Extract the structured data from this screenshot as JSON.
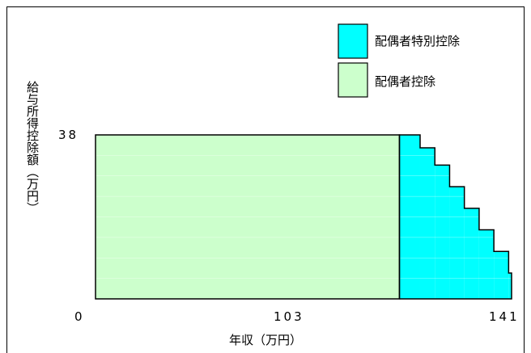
{
  "chart_data": {
    "type": "area",
    "xlabel": "年収（万円）",
    "ylabel": "給与所得控除額（万円）",
    "xlim": [
      0,
      141
    ],
    "ylim": [
      0,
      38
    ],
    "x_ticks": [
      "0",
      "103",
      "141"
    ],
    "y_ticks": [
      "38"
    ],
    "legend_position": "top-right",
    "series": [
      {
        "name": "配偶者特別控除",
        "color": "#00ffff",
        "steps": [
          {
            "x0": 103,
            "x1": 110,
            "y": 38
          },
          {
            "x0": 110,
            "x1": 115,
            "y": 35
          },
          {
            "x0": 115,
            "x1": 120,
            "y": 31
          },
          {
            "x0": 120,
            "x1": 125,
            "y": 26
          },
          {
            "x0": 125,
            "x1": 130,
            "y": 21
          },
          {
            "x0": 130,
            "x1": 135,
            "y": 16
          },
          {
            "x0": 135,
            "x1": 140,
            "y": 11
          },
          {
            "x0": 140,
            "x1": 141,
            "y": 6
          }
        ]
      },
      {
        "name": "配偶者控除",
        "color": "#ccffcc",
        "steps": [
          {
            "x0": 0,
            "x1": 103,
            "y": 38
          }
        ]
      }
    ]
  }
}
